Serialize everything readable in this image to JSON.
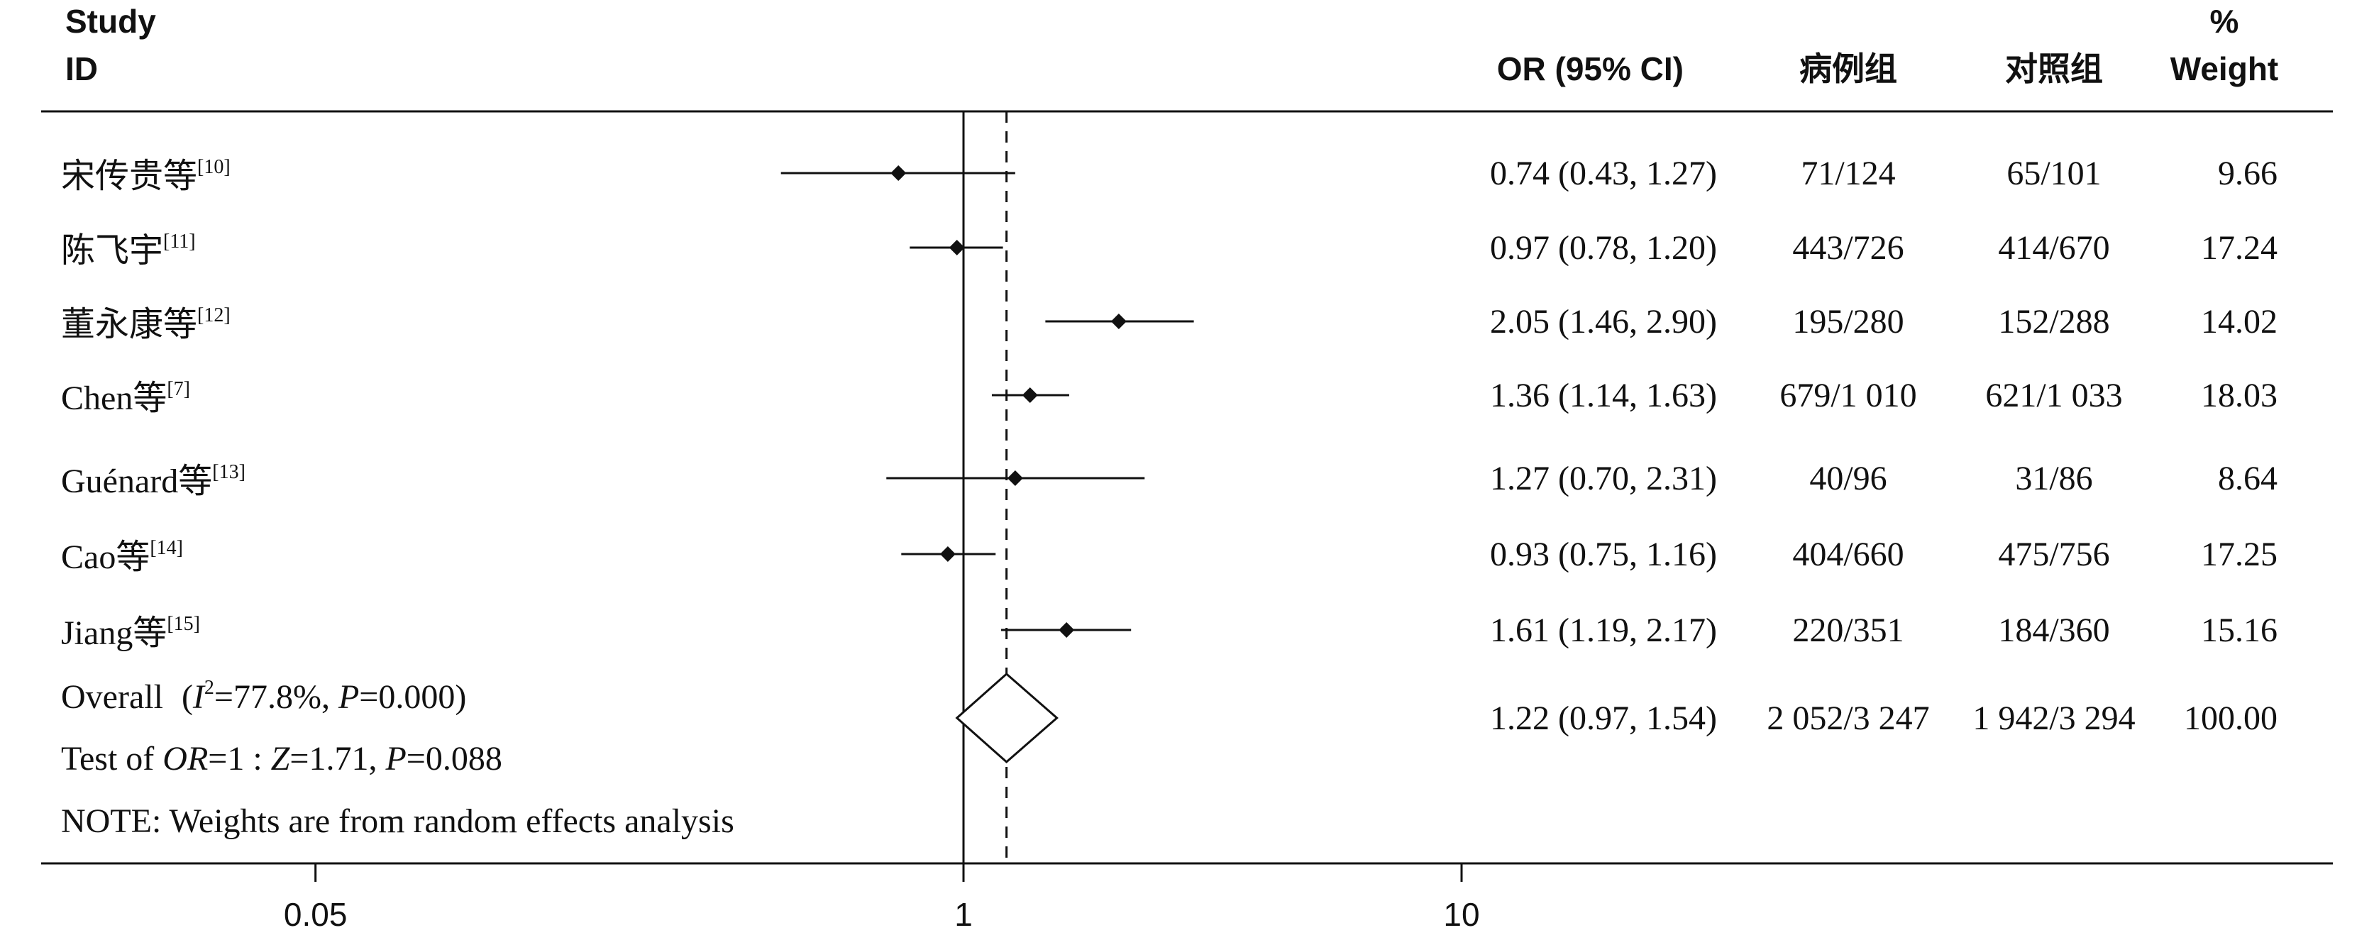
{
  "chart_data": {
    "type": "forest",
    "x_scale": "log",
    "x_ticks": [
      "0.05",
      "1",
      "10"
    ],
    "columns": {
      "study": [
        "Study",
        "ID"
      ],
      "or": "OR (95% CI)",
      "case": "病例组",
      "control": "对照组",
      "weight": [
        "%",
        "Weight"
      ]
    },
    "studies": [
      {
        "name": "宋传贵等",
        "ref": "[10]",
        "or": 0.74,
        "lo": 0.43,
        "hi": 1.27,
        "or_text": "0.74 (0.43, 1.27)",
        "case": "71/124",
        "control": "65/101",
        "weight": "9.66"
      },
      {
        "name": "陈飞宇",
        "ref": "[11]",
        "or": 0.97,
        "lo": 0.78,
        "hi": 1.2,
        "or_text": "0.97 (0.78, 1.20)",
        "case": "443/726",
        "control": "414/670",
        "weight": "17.24"
      },
      {
        "name": "董永康等",
        "ref": "[12]",
        "or": 2.05,
        "lo": 1.46,
        "hi": 2.9,
        "or_text": "2.05 (1.46, 2.90)",
        "case": "195/280",
        "control": "152/288",
        "weight": "14.02"
      },
      {
        "name": "Chen等",
        "ref": "[7]",
        "or": 1.36,
        "lo": 1.14,
        "hi": 1.63,
        "or_text": "1.36 (1.14, 1.63)",
        "case": "679/1 010",
        "control": "621/1 033",
        "weight": "18.03"
      },
      {
        "name": "Guénard等",
        "ref": "[13]",
        "or": 1.27,
        "lo": 0.7,
        "hi": 2.31,
        "or_text": "1.27 (0.70, 2.31)",
        "case": "40/96",
        "control": "31/86",
        "weight": "8.64"
      },
      {
        "name": "Cao等",
        "ref": "[14]",
        "or": 0.93,
        "lo": 0.75,
        "hi": 1.16,
        "or_text": "0.93 (0.75, 1.16)",
        "case": "404/660",
        "control": "475/756",
        "weight": "17.25"
      },
      {
        "name": "Jiang等",
        "ref": "[15]",
        "or": 1.61,
        "lo": 1.19,
        "hi": 2.17,
        "or_text": "1.61 (1.19, 2.17)",
        "case": "220/351",
        "control": "184/360",
        "weight": "15.16"
      }
    ],
    "overall": {
      "label": "Overall",
      "het_i": "I",
      "het_sup": "2",
      "het_rest": "=77.8%, ",
      "het_p_i": "P",
      "het_p_rest": "=0.000)",
      "or": 1.22,
      "lo": 0.97,
      "hi": 1.54,
      "or_text": "1.22 (0.97, 1.54)",
      "case": "2 052/3 247",
      "control": "1 942/3 294",
      "weight": "100.00"
    },
    "test_line": {
      "prefix": "Test of ",
      "or_i": "OR",
      "mid": "=1 : ",
      "z_i": "Z",
      "z_rest": "=1.71, ",
      "p_i": "P",
      "p_rest": "=0.088"
    },
    "note": "NOTE: Weights are from random effects analysis"
  }
}
